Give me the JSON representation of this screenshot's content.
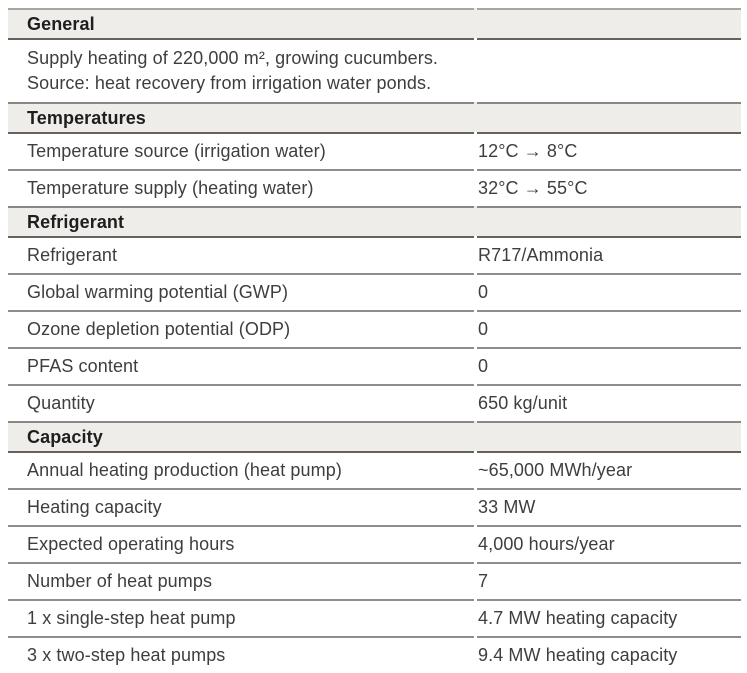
{
  "table": {
    "sections": [
      {
        "title": "General",
        "description_lines": [
          "Supply heating of 220,000 m², growing cucumbers.",
          "Source: heat recovery from irrigation water ponds."
        ],
        "rows": []
      },
      {
        "title": "Temperatures",
        "rows": [
          {
            "label": "Temperature source (irrigation water)",
            "value": "12°C → 8°C"
          },
          {
            "label": "Temperature supply (heating water)",
            "value": "32°C → 55°C"
          }
        ]
      },
      {
        "title": "Refrigerant",
        "rows": [
          {
            "label": "Refrigerant",
            "value": "R717/Ammonia"
          },
          {
            "label": "Global warming potential (GWP)",
            "value": "0"
          },
          {
            "label": "Ozone depletion potential (ODP)",
            "value": "0"
          },
          {
            "label": "PFAS content",
            "value": "0"
          },
          {
            "label": "Quantity",
            "value": "650 kg/unit"
          }
        ]
      },
      {
        "title": "Capacity",
        "rows": [
          {
            "label": "Annual heating production (heat pump)",
            "value": "~65,000 MWh/year"
          },
          {
            "label": "Heating capacity",
            "value": "33 MW"
          },
          {
            "label": "Expected operating hours",
            "value": "4,000 hours/year"
          },
          {
            "label": "Number of heat pumps",
            "value": "7"
          },
          {
            "label": "1 x single-step heat pump",
            "value": "4.7 MW heating capacity"
          },
          {
            "label": "3 x two-step heat pumps",
            "value": "9.4 MW heating capacity"
          }
        ]
      }
    ]
  },
  "colors": {
    "header_background": "#eeedea",
    "text": "#3e3e3e",
    "header_text": "#1e1e1e",
    "rule": "#8d8d8d",
    "rule_top": "#a8a49f",
    "rule_above_header": "#8a8681",
    "rule_below_header": "#66615c"
  }
}
